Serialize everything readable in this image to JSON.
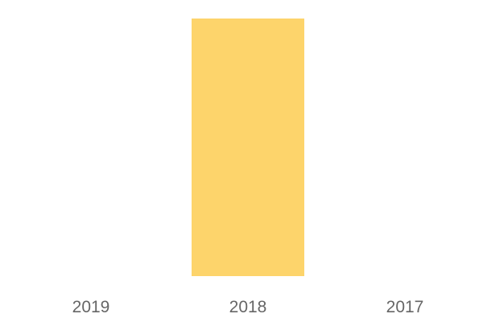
{
  "chart_data": {
    "type": "bar",
    "categories": [
      "2019",
      "2018",
      "2017"
    ],
    "values": [
      0,
      1,
      0
    ],
    "ylim": [
      0,
      1
    ],
    "title": "",
    "xlabel": "",
    "ylabel": "",
    "grid": false,
    "legend": "none",
    "bar_color": "#FDD46B",
    "label_color": "#666666"
  }
}
